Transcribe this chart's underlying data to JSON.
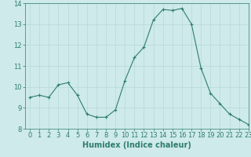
{
  "x": [
    0,
    1,
    2,
    3,
    4,
    5,
    6,
    7,
    8,
    9,
    10,
    11,
    12,
    13,
    14,
    15,
    16,
    17,
    18,
    19,
    20,
    21,
    22,
    23
  ],
  "y": [
    9.5,
    9.6,
    9.5,
    10.1,
    10.2,
    9.6,
    8.7,
    8.55,
    8.55,
    8.9,
    10.3,
    11.4,
    11.9,
    13.2,
    13.7,
    13.65,
    13.75,
    13.0,
    10.9,
    9.7,
    9.2,
    8.7,
    8.45,
    8.2
  ],
  "line_color": "#2e7d6e",
  "marker": "+",
  "marker_size": 3,
  "background_color": "#ceeaea",
  "grid_color": "#b8d8d8",
  "xlabel": "Humidex (Indice chaleur)",
  "xlim": [
    -0.5,
    23
  ],
  "ylim": [
    8,
    14
  ],
  "yticks": [
    8,
    9,
    10,
    11,
    12,
    13,
    14
  ],
  "xticks": [
    0,
    1,
    2,
    3,
    4,
    5,
    6,
    7,
    8,
    9,
    10,
    11,
    12,
    13,
    14,
    15,
    16,
    17,
    18,
    19,
    20,
    21,
    22,
    23
  ],
  "tick_color": "#2e7d6e",
  "label_color": "#2e7d6e",
  "xlabel_fontsize": 7,
  "tick_fontsize": 6
}
